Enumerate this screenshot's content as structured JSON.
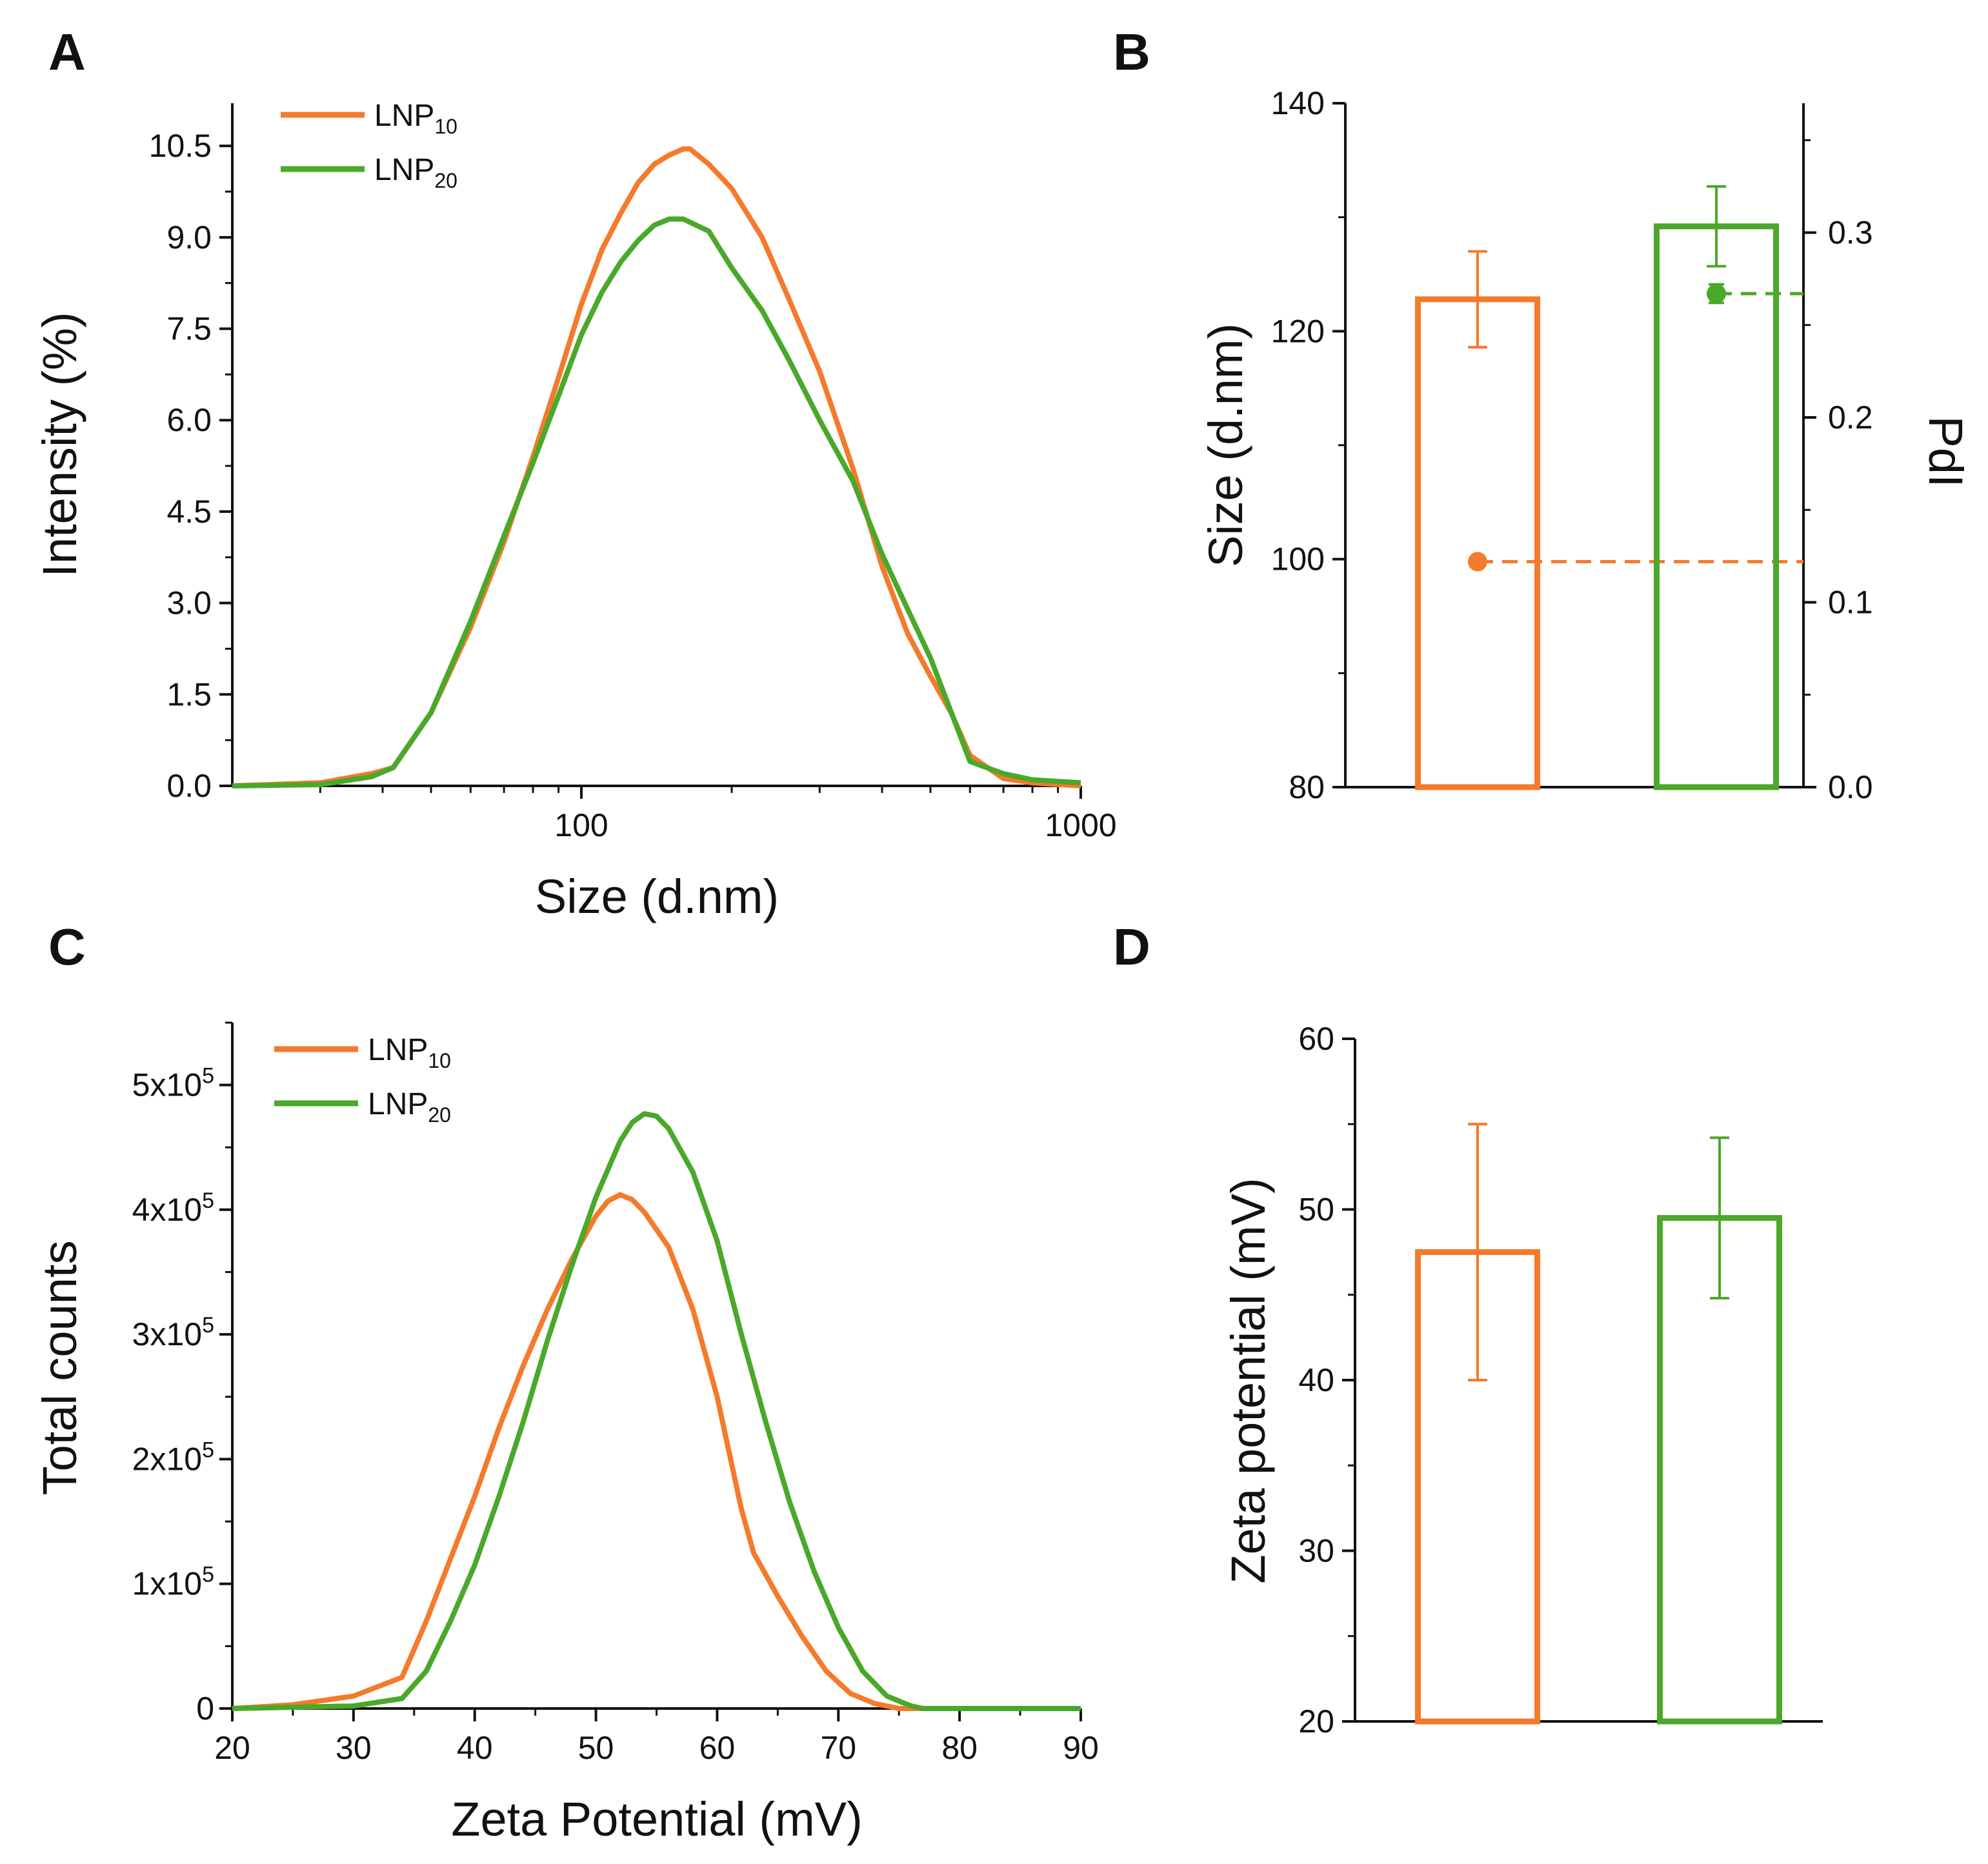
{
  "colors": {
    "lnp10": "#f47a2c",
    "lnp20": "#4aa82a",
    "axis": "#111111"
  },
  "legend": {
    "lnp10_base": "LNP",
    "lnp10_sub": "10",
    "lnp20_base": "LNP",
    "lnp20_sub": "20"
  },
  "chart_data": [
    {
      "panel": "A",
      "type": "line",
      "xscale": "log",
      "xlabel": "Size (d.nm)",
      "ylabel": "Intensity (%)",
      "xlim": [
        20,
        1000
      ],
      "ylim": [
        0,
        11.2
      ],
      "xticks": [
        "100",
        "1000"
      ],
      "yticks": [
        "0.0",
        "1.5",
        "3.0",
        "4.5",
        "6.0",
        "7.5",
        "9.0",
        "10.5"
      ],
      "legend_position": "top-left",
      "series": [
        {
          "name": "LNP10",
          "color": "#f47a2c",
          "x": [
            20,
            30,
            38,
            42,
            50,
            60,
            70,
            80,
            90,
            100,
            110,
            120,
            130,
            140,
            150,
            160,
            165,
            180,
            200,
            230,
            260,
            300,
            350,
            400,
            450,
            500,
            550,
            600,
            700,
            800,
            1000
          ],
          "y": [
            0,
            0.05,
            0.2,
            0.3,
            1.2,
            2.6,
            4.0,
            5.4,
            6.7,
            7.9,
            8.8,
            9.4,
            9.9,
            10.2,
            10.35,
            10.45,
            10.45,
            10.2,
            9.8,
            9.0,
            8.0,
            6.8,
            5.2,
            3.6,
            2.5,
            1.8,
            1.2,
            0.5,
            0.12,
            0.05,
            0
          ]
        },
        {
          "name": "LNP20",
          "color": "#4aa82a",
          "x": [
            20,
            30,
            38,
            42,
            50,
            60,
            70,
            80,
            90,
            100,
            110,
            120,
            130,
            140,
            150,
            160,
            180,
            200,
            230,
            260,
            300,
            350,
            400,
            450,
            500,
            600,
            700,
            800,
            1000
          ],
          "y": [
            0,
            0.02,
            0.15,
            0.3,
            1.2,
            2.7,
            4.1,
            5.3,
            6.4,
            7.4,
            8.1,
            8.6,
            8.95,
            9.2,
            9.3,
            9.3,
            9.1,
            8.5,
            7.8,
            7.0,
            6.0,
            5.0,
            3.8,
            2.9,
            2.1,
            0.4,
            0.2,
            0.1,
            0.05
          ]
        }
      ]
    },
    {
      "panel": "B",
      "type": "bar",
      "ylabel": "Size (d.nm)",
      "y2label": "PdI",
      "ylim": [
        80,
        140
      ],
      "y2lim": [
        0.0,
        0.37
      ],
      "yticks": [
        "80",
        "100",
        "120",
        "140"
      ],
      "y2ticks": [
        "0.0",
        "0.1",
        "0.2",
        "0.3"
      ],
      "series": [
        {
          "name": "LNP10",
          "color": "#f47a2c",
          "size": 122.8,
          "size_err": 4.2,
          "pdi": 0.122,
          "pdi_err": 0.0
        },
        {
          "name": "LNP20",
          "color": "#4aa82a",
          "size": 129.2,
          "size_err": 3.5,
          "pdi": 0.267,
          "pdi_err": 0.005
        }
      ]
    },
    {
      "panel": "C",
      "type": "line",
      "xlabel": "Zeta Potential (mV)",
      "ylabel": "Total counts",
      "xlim": [
        20,
        90
      ],
      "ylim": [
        0,
        550000
      ],
      "xticks": [
        "20",
        "30",
        "40",
        "50",
        "60",
        "70",
        "80",
        "90"
      ],
      "yticks": [
        {
          "base": "0",
          "exp": ""
        },
        {
          "base": "1x10",
          "exp": "5"
        },
        {
          "base": "2x10",
          "exp": "5"
        },
        {
          "base": "3x10",
          "exp": "5"
        },
        {
          "base": "4x10",
          "exp": "5"
        },
        {
          "base": "5x10",
          "exp": "5"
        }
      ],
      "legend_position": "top-left",
      "series": [
        {
          "name": "LNP10",
          "color": "#f47a2c",
          "x": [
            20,
            25,
            30,
            34,
            36,
            38,
            40,
            42,
            44,
            46,
            48,
            50,
            51,
            52,
            53,
            54,
            56,
            58,
            60,
            62,
            63,
            65,
            67,
            69,
            71,
            73,
            75,
            80,
            90
          ],
          "y": [
            0,
            3000,
            10000,
            25000,
            70000,
            120000,
            170000,
            225000,
            275000,
            320000,
            360000,
            395000,
            407000,
            412000,
            408000,
            398000,
            370000,
            320000,
            250000,
            160000,
            125000,
            90000,
            58000,
            30000,
            12000,
            4000,
            0,
            0,
            0
          ]
        },
        {
          "name": "LNP20",
          "color": "#4aa82a",
          "x": [
            20,
            30,
            34,
            36,
            38,
            40,
            42,
            44,
            46,
            48,
            50,
            52,
            53,
            54,
            55,
            56,
            58,
            60,
            62,
            64,
            66,
            68,
            70,
            72,
            74,
            76,
            77,
            80,
            90
          ],
          "y": [
            0,
            2000,
            8000,
            30000,
            70000,
            115000,
            170000,
            230000,
            295000,
            355000,
            410000,
            455000,
            470000,
            477000,
            475000,
            465000,
            430000,
            375000,
            300000,
            230000,
            165000,
            110000,
            65000,
            30000,
            10000,
            2000,
            0,
            0,
            0
          ]
        }
      ]
    },
    {
      "panel": "D",
      "type": "bar",
      "ylabel": "Zeta potential (mV)",
      "ylim": [
        20,
        60
      ],
      "yticks": [
        "20",
        "30",
        "40",
        "50",
        "60"
      ],
      "series": [
        {
          "name": "LNP10",
          "color": "#f47a2c",
          "value": 47.5,
          "err": 7.5
        },
        {
          "name": "LNP20",
          "color": "#4aa82a",
          "value": 49.5,
          "err": 4.7
        }
      ]
    }
  ],
  "panels": {
    "a": "A",
    "b": "B",
    "c": "C",
    "d": "D"
  }
}
